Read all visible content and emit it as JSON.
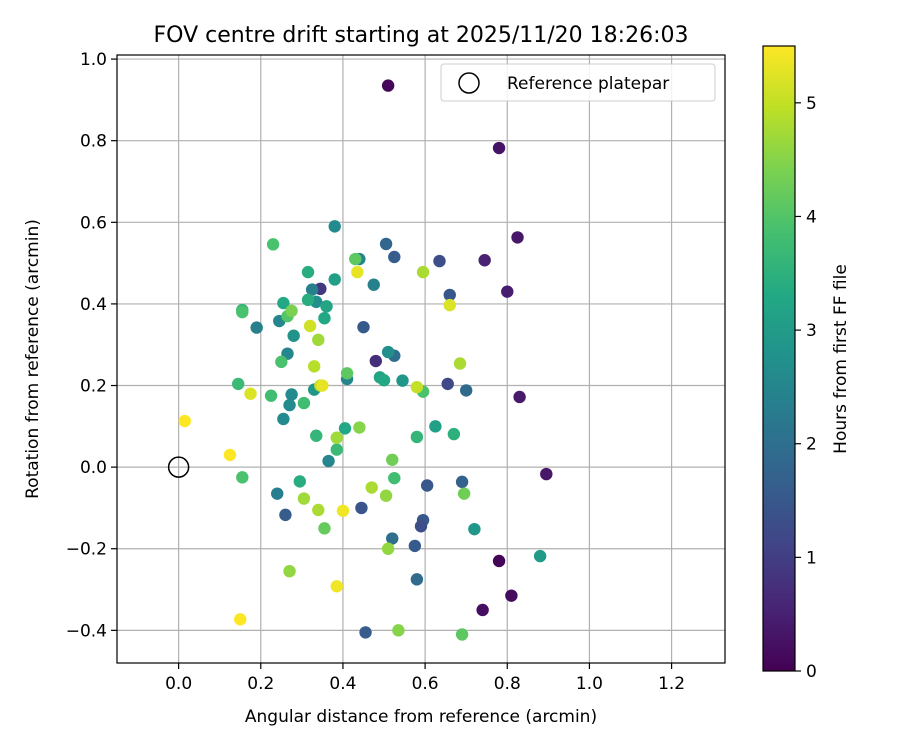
{
  "chart_data": {
    "type": "scatter",
    "title": "FOV centre drift starting at 2025/11/20 18:26:03",
    "xlabel": "Angular distance from reference (arcmin)",
    "ylabel": "Rotation from reference (arcmin)",
    "xlim": [
      -0.15,
      1.33
    ],
    "ylim": [
      -0.48,
      1.01
    ],
    "xticks": [
      0.0,
      0.2,
      0.4,
      0.6,
      0.8,
      1.0,
      1.2
    ],
    "yticks": [
      -0.4,
      -0.2,
      0.0,
      0.2,
      0.4,
      0.6,
      0.8,
      1.0
    ],
    "xtick_labels": [
      "0.0",
      "0.2",
      "0.4",
      "0.6",
      "0.8",
      "1.0",
      "1.2"
    ],
    "ytick_labels": [
      "−0.4",
      "−0.2",
      "0.0",
      "0.2",
      "0.4",
      "0.6",
      "0.8",
      "1.0"
    ],
    "grid": true,
    "legend": {
      "position": "top-right",
      "label": "Reference platepar"
    },
    "reference_point": {
      "x": 0.0,
      "y": 0.0
    },
    "colorbar": {
      "label": "Hours from first FF file",
      "min": 0,
      "max": 5.5,
      "ticks": [
        0,
        1,
        2,
        3,
        4,
        5
      ],
      "tick_labels": [
        "0",
        "1",
        "2",
        "3",
        "4",
        "5"
      ],
      "colormap": "viridis"
    },
    "points": [
      {
        "x": 0.51,
        "y": 0.935,
        "h": 0.1
      },
      {
        "x": 0.78,
        "y": 0.782,
        "h": 0.3
      },
      {
        "x": 0.825,
        "y": 0.563,
        "h": 0.35
      },
      {
        "x": 0.745,
        "y": 0.507,
        "h": 0.5
      },
      {
        "x": 0.8,
        "y": 0.43,
        "h": 0.45
      },
      {
        "x": 0.83,
        "y": 0.172,
        "h": 0.4
      },
      {
        "x": 0.895,
        "y": -0.017,
        "h": 0.35
      },
      {
        "x": 0.78,
        "y": -0.23,
        "h": 0.05
      },
      {
        "x": 0.81,
        "y": -0.315,
        "h": 0.15
      },
      {
        "x": 0.74,
        "y": -0.35,
        "h": 0.2
      },
      {
        "x": 0.48,
        "y": 0.26,
        "h": 0.7
      },
      {
        "x": 0.345,
        "y": 0.437,
        "h": 0.9
      },
      {
        "x": 0.635,
        "y": 0.505,
        "h": 1.3
      },
      {
        "x": 0.66,
        "y": 0.422,
        "h": 1.5
      },
      {
        "x": 0.655,
        "y": 0.204,
        "h": 1.2
      },
      {
        "x": 0.525,
        "y": 0.515,
        "h": 1.6
      },
      {
        "x": 0.45,
        "y": 0.343,
        "h": 1.55
      },
      {
        "x": 0.605,
        "y": -0.045,
        "h": 1.5
      },
      {
        "x": 0.595,
        "y": -0.13,
        "h": 1.5
      },
      {
        "x": 0.59,
        "y": -0.145,
        "h": 1.3
      },
      {
        "x": 0.575,
        "y": -0.193,
        "h": 1.55
      },
      {
        "x": 0.445,
        "y": -0.1,
        "h": 1.45
      },
      {
        "x": 0.455,
        "y": -0.405,
        "h": 1.6
      },
      {
        "x": 0.26,
        "y": -0.117,
        "h": 1.6
      },
      {
        "x": 0.69,
        "y": -0.036,
        "h": 1.7
      },
      {
        "x": 0.505,
        "y": 0.547,
        "h": 1.8
      },
      {
        "x": 0.7,
        "y": 0.188,
        "h": 1.9
      },
      {
        "x": 0.525,
        "y": 0.273,
        "h": 2.0
      },
      {
        "x": 0.58,
        "y": -0.275,
        "h": 1.9
      },
      {
        "x": 0.52,
        "y": -0.175,
        "h": 2.0
      },
      {
        "x": 0.24,
        "y": -0.065,
        "h": 2.3
      },
      {
        "x": 0.475,
        "y": 0.447,
        "h": 2.4
      },
      {
        "x": 0.38,
        "y": 0.59,
        "h": 2.6
      },
      {
        "x": 0.44,
        "y": 0.51,
        "h": 2.5
      },
      {
        "x": 0.325,
        "y": 0.435,
        "h": 2.4
      },
      {
        "x": 0.41,
        "y": 0.216,
        "h": 2.5
      },
      {
        "x": 0.365,
        "y": 0.015,
        "h": 2.5
      },
      {
        "x": 0.19,
        "y": 0.342,
        "h": 2.4
      },
      {
        "x": 0.245,
        "y": 0.358,
        "h": 2.5
      },
      {
        "x": 0.265,
        "y": 0.278,
        "h": 2.5
      },
      {
        "x": 0.275,
        "y": 0.178,
        "h": 2.6
      },
      {
        "x": 0.27,
        "y": 0.152,
        "h": 2.6
      },
      {
        "x": 0.255,
        "y": 0.118,
        "h": 2.6
      },
      {
        "x": 0.28,
        "y": 0.322,
        "h": 2.8
      },
      {
        "x": 0.335,
        "y": 0.405,
        "h": 2.7
      },
      {
        "x": 0.51,
        "y": 0.282,
        "h": 2.7
      },
      {
        "x": 0.545,
        "y": 0.212,
        "h": 2.9
      },
      {
        "x": 0.33,
        "y": 0.19,
        "h": 2.9
      },
      {
        "x": 0.72,
        "y": -0.152,
        "h": 2.9
      },
      {
        "x": 0.88,
        "y": -0.218,
        "h": 3.0
      },
      {
        "x": 0.625,
        "y": 0.1,
        "h": 3.1
      },
      {
        "x": 0.49,
        "y": 0.22,
        "h": 3.2
      },
      {
        "x": 0.5,
        "y": 0.213,
        "h": 3.3
      },
      {
        "x": 0.38,
        "y": 0.46,
        "h": 3.1
      },
      {
        "x": 0.36,
        "y": 0.394,
        "h": 3.2
      },
      {
        "x": 0.355,
        "y": 0.365,
        "h": 3.3
      },
      {
        "x": 0.255,
        "y": 0.402,
        "h": 3.3
      },
      {
        "x": 0.315,
        "y": 0.41,
        "h": 3.4
      },
      {
        "x": 0.405,
        "y": 0.095,
        "h": 3.3
      },
      {
        "x": 0.295,
        "y": -0.035,
        "h": 3.4
      },
      {
        "x": 0.315,
        "y": 0.478,
        "h": 3.4
      },
      {
        "x": 0.155,
        "y": 0.385,
        "h": 3.6
      },
      {
        "x": 0.335,
        "y": 0.077,
        "h": 3.6
      },
      {
        "x": 0.67,
        "y": 0.081,
        "h": 3.5
      },
      {
        "x": 0.58,
        "y": 0.074,
        "h": 3.6
      },
      {
        "x": 0.385,
        "y": 0.043,
        "h": 3.7
      },
      {
        "x": 0.525,
        "y": -0.027,
        "h": 3.8
      },
      {
        "x": 0.145,
        "y": 0.204,
        "h": 3.7
      },
      {
        "x": 0.225,
        "y": 0.175,
        "h": 3.8
      },
      {
        "x": 0.305,
        "y": 0.157,
        "h": 3.8
      },
      {
        "x": 0.595,
        "y": 0.185,
        "h": 3.9
      },
      {
        "x": 0.25,
        "y": 0.258,
        "h": 3.9
      },
      {
        "x": 0.155,
        "y": -0.025,
        "h": 3.9
      },
      {
        "x": 0.23,
        "y": 0.546,
        "h": 3.9
      },
      {
        "x": 0.155,
        "y": 0.38,
        "h": 3.9
      },
      {
        "x": 0.265,
        "y": 0.37,
        "h": 4.0
      },
      {
        "x": 0.41,
        "y": 0.23,
        "h": 4.1
      },
      {
        "x": 0.355,
        "y": -0.15,
        "h": 4.2
      },
      {
        "x": 0.69,
        "y": -0.41,
        "h": 4.1
      },
      {
        "x": 0.43,
        "y": 0.51,
        "h": 4.1
      },
      {
        "x": 0.695,
        "y": -0.065,
        "h": 4.3
      },
      {
        "x": 0.52,
        "y": 0.018,
        "h": 4.3
      },
      {
        "x": 0.275,
        "y": 0.383,
        "h": 4.4
      },
      {
        "x": 0.44,
        "y": 0.097,
        "h": 4.5
      },
      {
        "x": 0.505,
        "y": -0.07,
        "h": 4.6
      },
      {
        "x": 0.51,
        "y": -0.2,
        "h": 4.6
      },
      {
        "x": 0.535,
        "y": -0.4,
        "h": 4.5
      },
      {
        "x": 0.27,
        "y": -0.255,
        "h": 4.6
      },
      {
        "x": 0.305,
        "y": -0.077,
        "h": 4.7
      },
      {
        "x": 0.34,
        "y": -0.105,
        "h": 4.8
      },
      {
        "x": 0.34,
        "y": 0.312,
        "h": 4.7
      },
      {
        "x": 0.385,
        "y": 0.072,
        "h": 4.7
      },
      {
        "x": 0.47,
        "y": -0.05,
        "h": 4.8
      },
      {
        "x": 0.685,
        "y": 0.254,
        "h": 4.8
      },
      {
        "x": 0.595,
        "y": 0.478,
        "h": 4.8
      },
      {
        "x": 0.33,
        "y": 0.247,
        "h": 4.9
      },
      {
        "x": 0.345,
        "y": 0.2,
        "h": 5.0
      },
      {
        "x": 0.58,
        "y": 0.196,
        "h": 5.0
      },
      {
        "x": 0.32,
        "y": 0.346,
        "h": 5.1
      },
      {
        "x": 0.175,
        "y": 0.18,
        "h": 5.2
      },
      {
        "x": 0.435,
        "y": 0.478,
        "h": 5.3
      },
      {
        "x": 0.66,
        "y": 0.397,
        "h": 5.2
      },
      {
        "x": 0.35,
        "y": 0.2,
        "h": 5.3
      },
      {
        "x": 0.4,
        "y": -0.107,
        "h": 5.4
      },
      {
        "x": 0.385,
        "y": -0.292,
        "h": 5.4
      },
      {
        "x": 0.125,
        "y": 0.03,
        "h": 5.5
      },
      {
        "x": 0.015,
        "y": 0.113,
        "h": 5.5
      },
      {
        "x": 0.15,
        "y": -0.373,
        "h": 5.5
      }
    ]
  }
}
